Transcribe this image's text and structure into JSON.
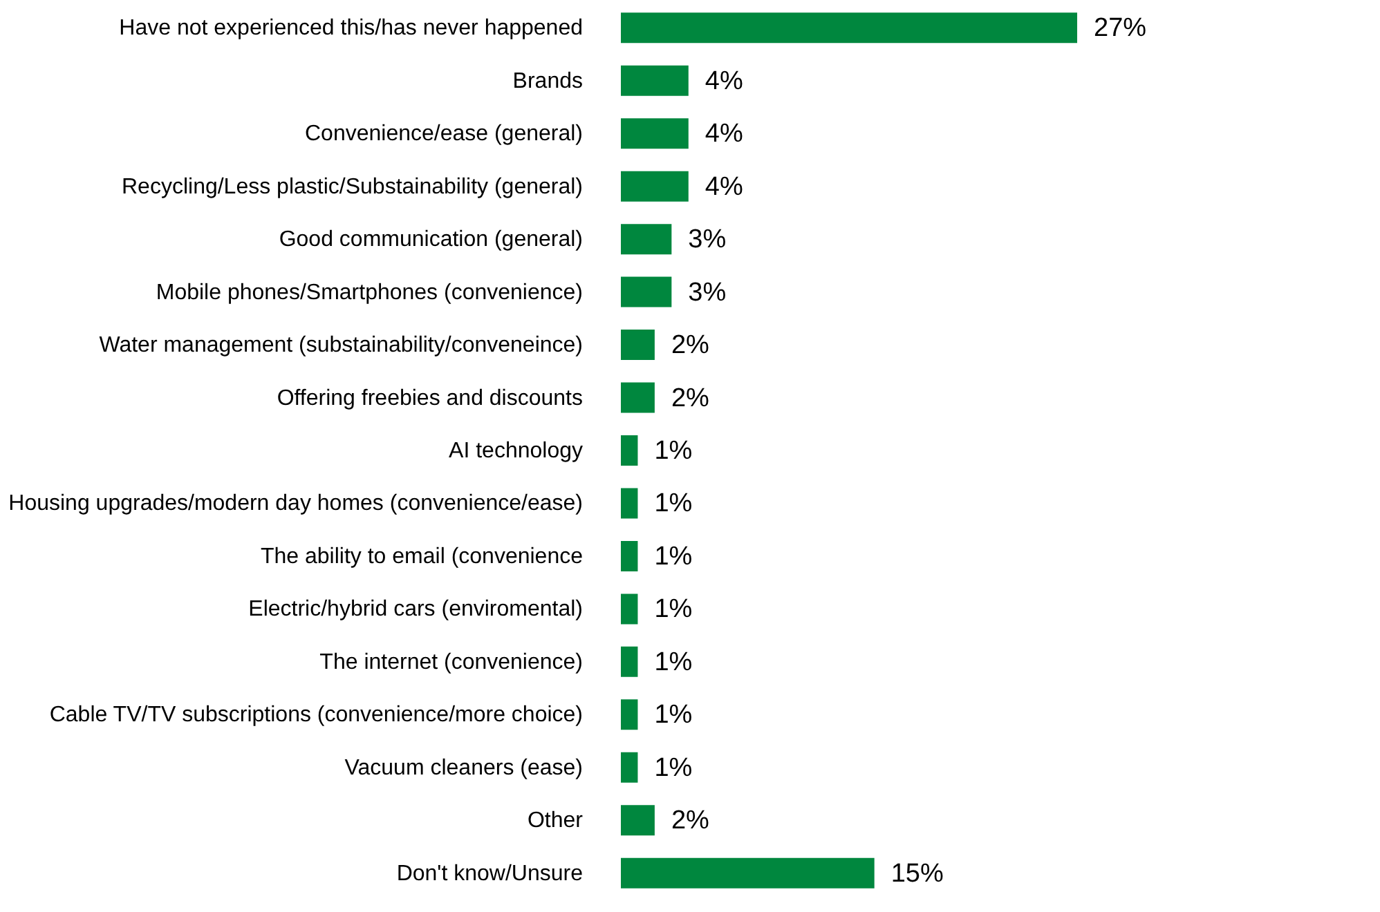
{
  "chart_data": {
    "type": "bar",
    "orientation": "horizontal",
    "categories": [
      "Have not experienced this/has never happened",
      "Brands",
      "Convenience/ease (general)",
      "Recycling/Less plastic/Substainability (general)",
      "Good communication (general)",
      "Mobile phones/Smartphones (convenience)",
      "Water management (substainability/conveneince)",
      "Offering freebies and discounts",
      "AI technology",
      "Housing upgrades/modern day homes (convenience/ease)",
      "The ability to email (convenience",
      "Electric/hybrid cars (enviromental)",
      "The internet (convenience)",
      "Cable TV/TV subscriptions (convenience/more choice)",
      "Vacuum cleaners (ease)",
      "Other",
      "Don't know/Unsure"
    ],
    "values": [
      27,
      4,
      4,
      4,
      3,
      3,
      2,
      2,
      1,
      1,
      1,
      1,
      1,
      1,
      1,
      2,
      15
    ],
    "value_labels": [
      "27%",
      "4%",
      "4%",
      "4%",
      "3%",
      "3%",
      "2%",
      "2%",
      "1%",
      "1%",
      "1%",
      "1%",
      "1%",
      "1%",
      "1%",
      "2%",
      "15%"
    ],
    "color": "#00873e",
    "grid": false
  }
}
